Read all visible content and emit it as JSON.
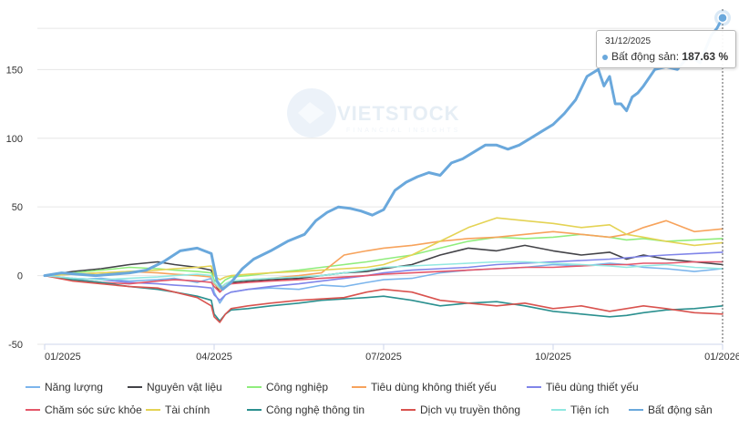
{
  "chart_data": {
    "type": "line",
    "xlabel": "",
    "ylabel": "",
    "x_tick_labels": [
      "01/2025",
      "04/2025",
      "07/2025",
      "10/2025",
      "01/2026"
    ],
    "x_ticks": [
      0,
      3,
      6,
      9,
      12
    ],
    "xlim": [
      0,
      12
    ],
    "ylim": [
      -50,
      190
    ],
    "y_ticks": [
      -50,
      0,
      50,
      100,
      150
    ],
    "grid": "horizontal",
    "legend_position": "bottom",
    "tooltip": {
      "date": "31/12/2025",
      "series": "Bất động sản",
      "value": "187.63 %"
    },
    "series": [
      {
        "name": "Năng lượng",
        "color": "#7cb5ec",
        "x": [
          0,
          0.5,
          1,
          1.5,
          2,
          2.3,
          2.7,
          2.95,
          3,
          3.1,
          3.2,
          3.3,
          3.6,
          4,
          4.5,
          4.9,
          5.3,
          5.7,
          6,
          6.5,
          7,
          7.5,
          8,
          8.5,
          9,
          9.5,
          10,
          10.3,
          10.6,
          11,
          11.5,
          12
        ],
        "y": [
          0,
          -3,
          -2,
          -4,
          -3,
          -2,
          -5,
          -2,
          -12,
          -20,
          -14,
          -12,
          -10,
          -9,
          -10,
          -7,
          -8,
          -5,
          -3,
          -2,
          2,
          4,
          5,
          6,
          8,
          7,
          9,
          8,
          6,
          5,
          3,
          5
        ]
      },
      {
        "name": "Nguyên vật liệu",
        "color": "#434348",
        "x": [
          0,
          0.5,
          1,
          1.5,
          2,
          2.3,
          2.7,
          2.95,
          3,
          3.1,
          3.2,
          3.3,
          3.6,
          4,
          4.5,
          4.9,
          5.3,
          5.7,
          6,
          6.5,
          7,
          7.5,
          8,
          8.5,
          9,
          9.5,
          10,
          10.3,
          10.6,
          11,
          11.5,
          12
        ],
        "y": [
          0,
          3,
          5,
          8,
          10,
          8,
          6,
          4,
          -5,
          -12,
          -8,
          -5,
          -4,
          -3,
          -2,
          0,
          2,
          3,
          5,
          8,
          15,
          20,
          18,
          22,
          18,
          15,
          17,
          12,
          15,
          12,
          10,
          8
        ]
      },
      {
        "name": "Công nghiệp",
        "color": "#90ed7d",
        "x": [
          0,
          0.5,
          1,
          1.5,
          2,
          2.3,
          2.7,
          2.95,
          3,
          3.1,
          3.2,
          3.3,
          3.6,
          4,
          4.5,
          4.9,
          5.3,
          5.7,
          6,
          6.5,
          7,
          7.5,
          8,
          8.5,
          9,
          9.5,
          10,
          10.3,
          10.6,
          11,
          11.5,
          12
        ],
        "y": [
          0,
          2,
          4,
          6,
          5,
          4,
          3,
          2,
          -3,
          -7,
          -3,
          -1,
          0,
          2,
          4,
          6,
          8,
          10,
          12,
          15,
          20,
          25,
          28,
          27,
          28,
          30,
          28,
          26,
          27,
          25,
          26,
          27
        ]
      },
      {
        "name": "Tiêu dùng không thiết yếu",
        "color": "#f7a35c",
        "x": [
          0,
          0.5,
          1,
          1.5,
          2,
          2.3,
          2.7,
          2.95,
          3,
          3.1,
          3.2,
          3.3,
          3.6,
          4,
          4.5,
          4.9,
          5.3,
          5.7,
          6,
          6.5,
          7,
          7.5,
          8,
          8.5,
          9,
          9.5,
          10,
          10.3,
          10.6,
          11,
          11.5,
          12
        ],
        "y": [
          0,
          1,
          2,
          3,
          2,
          1,
          0,
          -1,
          -6,
          -10,
          -6,
          -4,
          -3,
          -2,
          0,
          2,
          15,
          18,
          20,
          22,
          25,
          27,
          28,
          30,
          32,
          30,
          28,
          30,
          35,
          40,
          32,
          34
        ]
      },
      {
        "name": "Tiêu dùng thiết yếu",
        "color": "#8085e9",
        "x": [
          0,
          0.5,
          1,
          1.5,
          2,
          2.3,
          2.7,
          2.95,
          3,
          3.1,
          3.2,
          3.3,
          3.6,
          4,
          4.5,
          4.9,
          5.3,
          5.7,
          6,
          6.5,
          7,
          7.5,
          8,
          8.5,
          9,
          9.5,
          10,
          10.3,
          10.6,
          11,
          11.5,
          12
        ],
        "y": [
          0,
          -2,
          -3,
          -5,
          -6,
          -7,
          -8,
          -9,
          -14,
          -18,
          -14,
          -12,
          -10,
          -8,
          -6,
          -4,
          -2,
          0,
          2,
          4,
          5,
          6,
          8,
          9,
          10,
          11,
          12,
          13,
          14,
          15,
          16,
          17
        ]
      },
      {
        "name": "Chăm sóc sức khỏe",
        "color": "#e4576a",
        "x": [
          0,
          0.5,
          1,
          1.5,
          2,
          2.3,
          2.7,
          2.95,
          3,
          3.1,
          3.2,
          3.3,
          3.6,
          4,
          4.5,
          4.9,
          5.3,
          5.7,
          6,
          6.5,
          7,
          7.5,
          8,
          8.5,
          9,
          9.5,
          10,
          10.3,
          10.6,
          11,
          11.5,
          12
        ],
        "y": [
          0,
          -3,
          -5,
          -6,
          -4,
          -3,
          -4,
          -5,
          -8,
          -12,
          -8,
          -6,
          -5,
          -4,
          -3,
          -2,
          -1,
          0,
          1,
          2,
          3,
          4,
          5,
          6,
          6,
          7,
          8,
          8,
          9,
          9,
          10,
          10
        ]
      },
      {
        "name": "Tài chính",
        "color": "#e4d354",
        "x": [
          0,
          0.5,
          1,
          1.5,
          2,
          2.3,
          2.7,
          2.95,
          3,
          3.1,
          3.2,
          3.3,
          3.6,
          4,
          4.5,
          4.9,
          5.3,
          5.7,
          6,
          6.5,
          7,
          7.5,
          8,
          8.5,
          9,
          9.5,
          10,
          10.3,
          10.6,
          11,
          11.5,
          12
        ],
        "y": [
          0,
          1,
          2,
          3,
          4,
          5,
          6,
          7,
          0,
          -3,
          -1,
          0,
          1,
          2,
          3,
          4,
          5,
          6,
          8,
          15,
          25,
          35,
          42,
          40,
          38,
          35,
          37,
          30,
          28,
          25,
          22,
          24
        ]
      },
      {
        "name": "Công nghệ thông tin",
        "color": "#2b908f",
        "x": [
          0,
          0.5,
          1,
          1.5,
          2,
          2.3,
          2.7,
          2.95,
          3,
          3.1,
          3.2,
          3.3,
          3.6,
          4,
          4.5,
          4.9,
          5.3,
          5.7,
          6,
          6.5,
          7,
          7.5,
          8,
          8.5,
          9,
          9.5,
          10,
          10.3,
          10.6,
          11,
          11.5,
          12
        ],
        "y": [
          0,
          -3,
          -5,
          -8,
          -10,
          -12,
          -15,
          -18,
          -28,
          -33,
          -28,
          -25,
          -24,
          -22,
          -20,
          -18,
          -17,
          -16,
          -15,
          -18,
          -22,
          -20,
          -19,
          -22,
          -26,
          -28,
          -30,
          -29,
          -27,
          -25,
          -24,
          -22
        ]
      },
      {
        "name": "Dịch vụ truyền thông",
        "color": "#d9534f",
        "x": [
          0,
          0.5,
          1,
          1.5,
          2,
          2.3,
          2.7,
          2.95,
          3,
          3.1,
          3.2,
          3.3,
          3.6,
          4,
          4.5,
          4.9,
          5.3,
          5.7,
          6,
          6.5,
          7,
          7.5,
          8,
          8.5,
          9,
          9.5,
          10,
          10.3,
          10.6,
          11,
          11.5,
          12
        ],
        "y": [
          0,
          -4,
          -6,
          -8,
          -9,
          -12,
          -16,
          -22,
          -30,
          -34,
          -28,
          -24,
          -22,
          -20,
          -18,
          -17,
          -16,
          -12,
          -10,
          -12,
          -18,
          -20,
          -22,
          -20,
          -24,
          -22,
          -26,
          -24,
          -22,
          -24,
          -27,
          -28
        ]
      },
      {
        "name": "Tiện ích",
        "color": "#91e8e1",
        "x": [
          0,
          0.5,
          1,
          1.5,
          2,
          2.3,
          2.7,
          2.95,
          3,
          3.1,
          3.2,
          3.3,
          3.6,
          4,
          4.5,
          4.9,
          5.3,
          5.7,
          6,
          6.5,
          7,
          7.5,
          8,
          8.5,
          9,
          9.5,
          10,
          10.3,
          10.6,
          11,
          11.5,
          12
        ],
        "y": [
          0,
          -2,
          -3,
          -2,
          -1,
          0,
          1,
          0,
          -5,
          -9,
          -6,
          -4,
          -3,
          -2,
          -1,
          0,
          2,
          4,
          6,
          7,
          8,
          9,
          10,
          10,
          9,
          8,
          7,
          6,
          7,
          8,
          6,
          5
        ]
      },
      {
        "name": "Bất động sản",
        "color": "#6aa8dc",
        "x": [
          0,
          0.3,
          0.6,
          0.9,
          1.2,
          1.5,
          1.8,
          2.1,
          2.4,
          2.7,
          2.95,
          3.05,
          3.15,
          3.3,
          3.5,
          3.7,
          4,
          4.3,
          4.6,
          4.8,
          5,
          5.2,
          5.4,
          5.6,
          5.8,
          6,
          6.2,
          6.4,
          6.6,
          6.8,
          7,
          7.2,
          7.4,
          7.6,
          7.8,
          8,
          8.2,
          8.4,
          8.6,
          8.8,
          9,
          9.2,
          9.4,
          9.6,
          9.8,
          9.9,
          10,
          10.1,
          10.2,
          10.3,
          10.4,
          10.5,
          10.6,
          10.8,
          11,
          11.2,
          11.4,
          11.6,
          11.8,
          11.9,
          12
        ],
        "y": [
          0,
          2,
          1,
          0,
          1,
          2,
          4,
          10,
          18,
          20,
          16,
          -4,
          -10,
          -5,
          5,
          12,
          18,
          25,
          30,
          40,
          46,
          50,
          49,
          47,
          44,
          48,
          62,
          68,
          72,
          75,
          73,
          82,
          85,
          90,
          95,
          95,
          92,
          95,
          100,
          105,
          110,
          118,
          128,
          145,
          150,
          138,
          145,
          125,
          125,
          120,
          130,
          133,
          138,
          150,
          152,
          150,
          160,
          155,
          175,
          180,
          187.63
        ]
      }
    ]
  }
}
